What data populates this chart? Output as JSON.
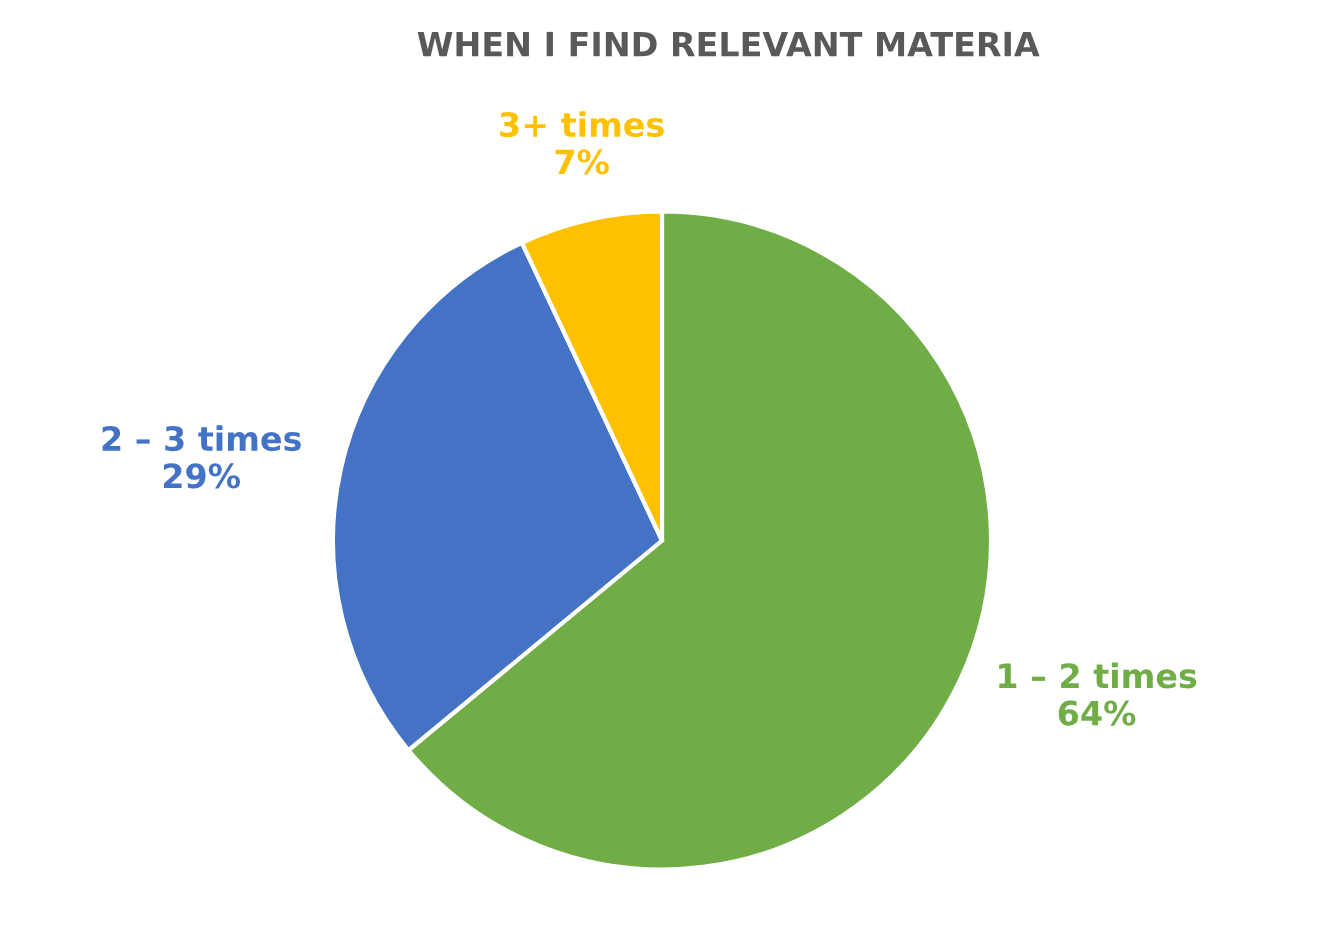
{
  "chart_data": {
    "type": "pie",
    "title": "WHEN I FIND RELEVANT MATERIA",
    "categories": [
      "1 – 2 times",
      "2 – 3 times",
      "3+ times"
    ],
    "values": [
      64,
      29,
      7
    ],
    "colors": [
      "#70ad47",
      "#4472c4",
      "#ffc000"
    ],
    "value_labels": [
      "64%",
      "29%",
      "7%"
    ]
  }
}
